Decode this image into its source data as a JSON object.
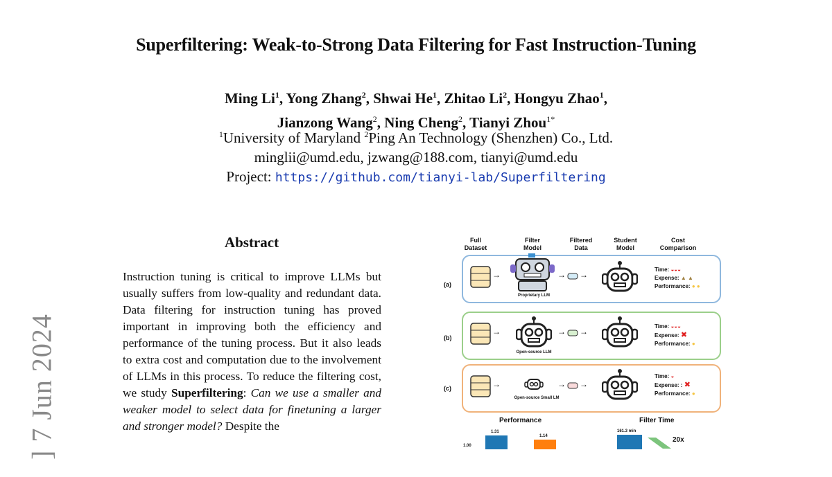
{
  "paper": {
    "title": "Superfiltering: Weak-to-Strong Data Filtering for Fast Instruction-Tuning",
    "authors_line1": [
      {
        "name": "Ming Li",
        "sup": "1"
      },
      {
        "name": "Yong Zhang",
        "sup": "2"
      },
      {
        "name": "Shwai He",
        "sup": "1"
      },
      {
        "name": "Zhitao Li",
        "sup": "2"
      },
      {
        "name": "Hongyu Zhao",
        "sup": "1"
      }
    ],
    "authors_line2": [
      {
        "name": "Jianzong Wang",
        "sup": "2"
      },
      {
        "name": "Ning Cheng",
        "sup": "2"
      },
      {
        "name": "Tianyi Zhou",
        "sup": "1*"
      }
    ],
    "affil_sup1": "1",
    "affil1": "University of Maryland ",
    "affil_sup2": "2",
    "affil2": "Ping An Technology (Shenzhen) Co., Ltd.",
    "emails": "minglii@umd.edu, jzwang@188.com, tianyi@umd.edu",
    "project_label": "Project: ",
    "project_url": "https://github.com/tianyi-lab/Superfiltering",
    "side_stamp": "] 7 Jun 2024"
  },
  "abstract": {
    "heading": "Abstract",
    "text_1": "Instruction tuning is critical to improve LLMs but usually suffers from low-quality and redundant data. Data filtering for instruction tuning has proved important in improving both the efficiency and performance of the tuning process. But it also leads to extra cost and computation due to the involvement of LLMs in this process. To reduce the filtering cost, we study ",
    "bold_1": "Superfiltering",
    "text_2": ": ",
    "italic_1": "Can we use a smaller and weaker model to select data for finetuning a larger and stronger model?",
    "text_3": " Despite the"
  },
  "figure": {
    "headers": [
      "Full\nDataset",
      "Filter\nModel",
      "Filtered\nData",
      "Student\nModel",
      "Cost\nComparison"
    ],
    "rows": [
      {
        "label": "(a)",
        "caption": "Proprietary LLM",
        "time": "Time:",
        "time_icons": "◒◒◒",
        "expense": "Expense:",
        "expense_val": "▲ ▲",
        "performance": "Performance:",
        "perf_val": "● ●"
      },
      {
        "label": "(b)",
        "caption": "Open-source LLM",
        "time": "Time:",
        "time_icons": "◒◒◒",
        "expense": "Expense:",
        "expense_val": "✖",
        "performance": "Performance:",
        "perf_val": "●"
      },
      {
        "label": "(c)",
        "caption": "Open-source Small LM",
        "time": "Time:",
        "time_icons": "◒",
        "expense": "Expense: :",
        "expense_val": "✖",
        "performance": "Performance:",
        "perf_val": "●"
      }
    ],
    "performance_title": "Performance",
    "filter_time_title": "Filter Time",
    "perf_labels": [
      "1.31",
      "1.14"
    ],
    "perf_axis": "1.00",
    "filter_label": "161.3 min",
    "speedup": "20x",
    "colors": {
      "bar_blue": "#1f77b4",
      "bar_orange": "#ff7f0e",
      "arrow_green": "#7cc47c"
    }
  }
}
